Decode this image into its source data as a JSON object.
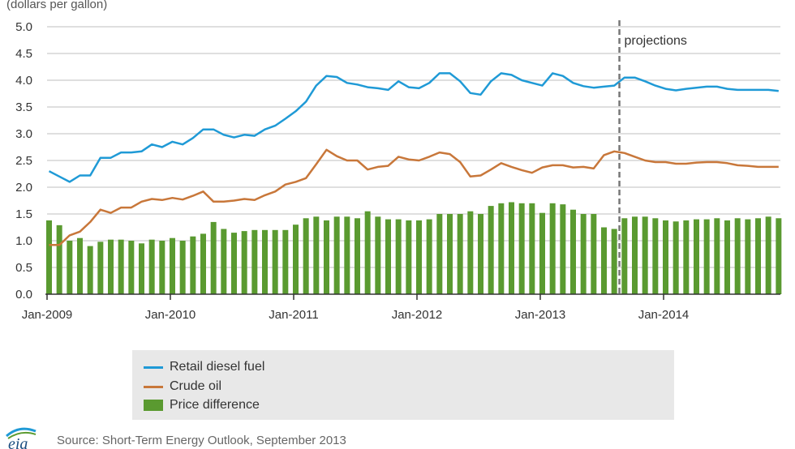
{
  "chart_data": {
    "type": "bar+line",
    "units_label": "(dollars per gallon)",
    "ylim": [
      0,
      5
    ],
    "yticks": [
      "0.0",
      "0.5",
      "1.0",
      "1.5",
      "2.0",
      "2.5",
      "3.0",
      "3.5",
      "4.0",
      "4.5",
      "5.0"
    ],
    "xtick_labels": [
      "Jan-2009",
      "Jan-2010",
      "Jan-2011",
      "Jan-2012",
      "Jan-2013",
      "Jan-2014"
    ],
    "x_start": "Jan-2009",
    "months": 72,
    "grid": true,
    "projection_label": "projections",
    "projection_start_month_index": 55.7,
    "series": [
      {
        "name": "Retail diesel fuel",
        "type": "line",
        "color": "#1f9ad6",
        "values": [
          2.3,
          2.2,
          2.1,
          2.22,
          2.22,
          2.55,
          2.55,
          2.65,
          2.65,
          2.67,
          2.8,
          2.75,
          2.85,
          2.8,
          2.92,
          3.08,
          3.08,
          2.98,
          2.93,
          2.98,
          2.96,
          3.08,
          3.15,
          3.28,
          3.42,
          3.6,
          3.9,
          4.08,
          4.06,
          3.95,
          3.92,
          3.87,
          3.85,
          3.82,
          3.98,
          3.87,
          3.85,
          3.95,
          4.13,
          4.13,
          3.98,
          3.76,
          3.73,
          3.98,
          4.13,
          4.1,
          4.0,
          3.95,
          3.9,
          4.13,
          4.08,
          3.95,
          3.89,
          3.86,
          3.88,
          3.9,
          4.05,
          4.05,
          3.98,
          3.9,
          3.84,
          3.81,
          3.84,
          3.86,
          3.88,
          3.88,
          3.84,
          3.82,
          3.82,
          3.82,
          3.82,
          3.8
        ]
      },
      {
        "name": "Crude oil",
        "type": "line",
        "color": "#c8773a",
        "values": [
          0.92,
          0.92,
          1.1,
          1.17,
          1.35,
          1.58,
          1.52,
          1.62,
          1.62,
          1.73,
          1.78,
          1.76,
          1.8,
          1.77,
          1.84,
          1.92,
          1.73,
          1.73,
          1.75,
          1.78,
          1.76,
          1.85,
          1.92,
          2.05,
          2.1,
          2.17,
          2.43,
          2.7,
          2.58,
          2.5,
          2.5,
          2.33,
          2.38,
          2.4,
          2.57,
          2.52,
          2.5,
          2.57,
          2.65,
          2.62,
          2.47,
          2.2,
          2.22,
          2.33,
          2.45,
          2.38,
          2.32,
          2.27,
          2.37,
          2.41,
          2.41,
          2.37,
          2.38,
          2.35,
          2.6,
          2.67,
          2.64,
          2.57,
          2.5,
          2.47,
          2.47,
          2.44,
          2.44,
          2.46,
          2.47,
          2.47,
          2.45,
          2.41,
          2.4,
          2.38,
          2.38,
          2.38
        ]
      },
      {
        "name": "Price difference",
        "type": "bar",
        "color": "#5a9a30",
        "values": [
          1.38,
          1.29,
          1.0,
          1.05,
          0.9,
          0.98,
          1.02,
          1.02,
          1.0,
          0.95,
          1.02,
          1.0,
          1.05,
          1.0,
          1.08,
          1.13,
          1.35,
          1.22,
          1.15,
          1.18,
          1.2,
          1.2,
          1.2,
          1.2,
          1.3,
          1.42,
          1.45,
          1.38,
          1.45,
          1.45,
          1.42,
          1.55,
          1.45,
          1.4,
          1.4,
          1.38,
          1.38,
          1.4,
          1.5,
          1.5,
          1.5,
          1.55,
          1.5,
          1.65,
          1.7,
          1.72,
          1.7,
          1.7,
          1.52,
          1.7,
          1.68,
          1.58,
          1.5,
          1.5,
          1.25,
          1.22,
          1.42,
          1.45,
          1.45,
          1.42,
          1.38,
          1.36,
          1.38,
          1.4,
          1.4,
          1.42,
          1.38,
          1.42,
          1.4,
          1.42,
          1.45,
          1.42
        ]
      }
    ],
    "legend_placement": "bottom"
  },
  "source": "Source: Short-Term Energy Outlook, September 2013",
  "logo_text": "eia"
}
